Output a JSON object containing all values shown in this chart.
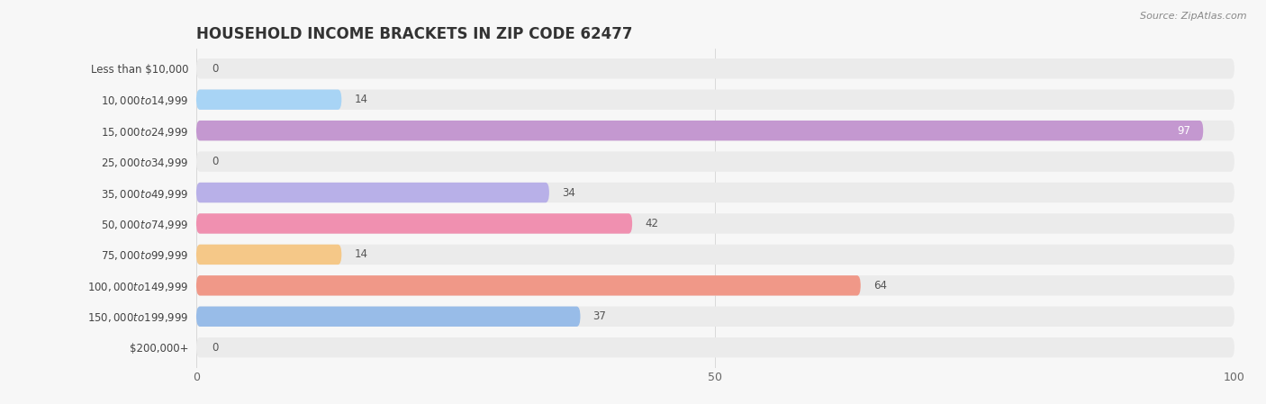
{
  "title": "HOUSEHOLD INCOME BRACKETS IN ZIP CODE 62477",
  "source": "Source: ZipAtlas.com",
  "categories": [
    "Less than $10,000",
    "$10,000 to $14,999",
    "$15,000 to $24,999",
    "$25,000 to $34,999",
    "$35,000 to $49,999",
    "$50,000 to $74,999",
    "$75,000 to $99,999",
    "$100,000 to $149,999",
    "$150,000 to $199,999",
    "$200,000+"
  ],
  "values": [
    0,
    14,
    97,
    0,
    34,
    42,
    14,
    64,
    37,
    0
  ],
  "bar_colors": [
    "#f4a0a0",
    "#a8d4f5",
    "#c498d0",
    "#7dd6c8",
    "#b8b0e8",
    "#f090b0",
    "#f5c888",
    "#f09888",
    "#98bce8",
    "#d8b8e8"
  ],
  "xlim": [
    0,
    100
  ],
  "xticks": [
    0,
    50,
    100
  ],
  "background_color": "#f7f7f7",
  "bar_bg_color": "#ebebeb",
  "title_fontsize": 12,
  "label_fontsize": 8.5,
  "value_fontsize": 8.5
}
